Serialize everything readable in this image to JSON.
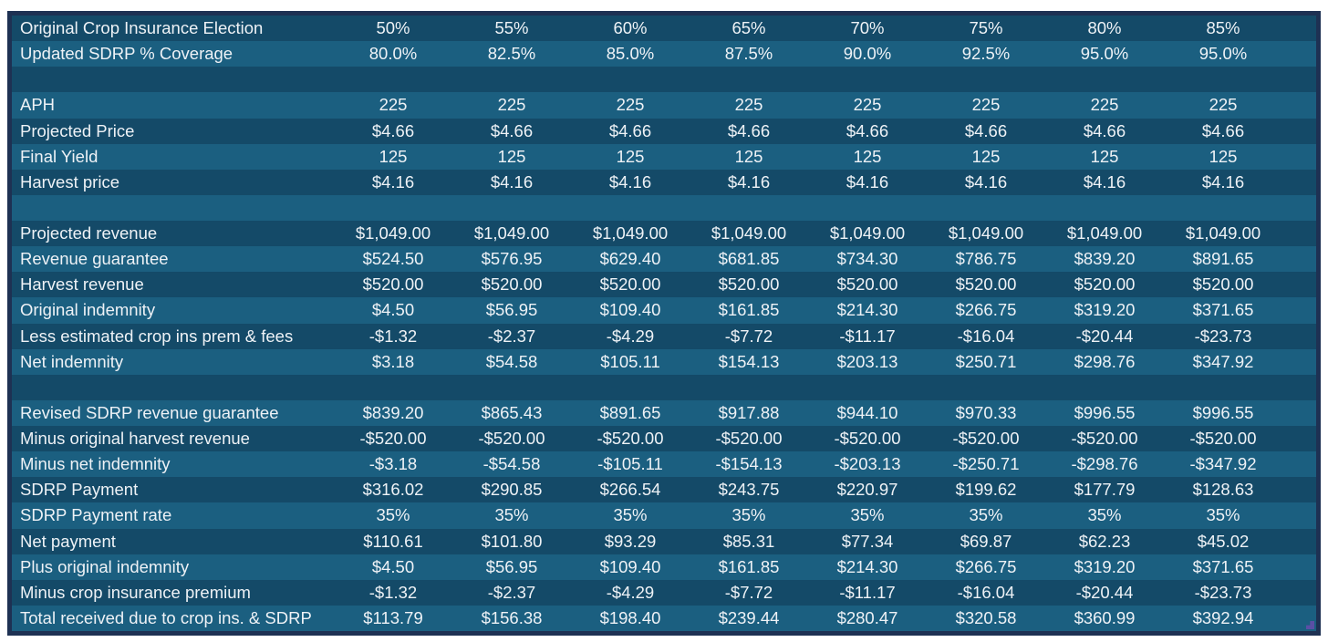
{
  "colors": {
    "page_bg": "#ffffff",
    "table_border": "#1e3153",
    "row_dark": "#144a68",
    "row_light": "#1b5f80",
    "text": "#eef2f6",
    "corner_marker": "#5a4fa5"
  },
  "table": {
    "rows": [
      {
        "label": "Original Crop Insurance Election",
        "values": [
          "50%",
          "55%",
          "60%",
          "65%",
          "70%",
          "75%",
          "80%",
          "85%"
        ]
      },
      {
        "label": "Updated SDRP % Coverage",
        "values": [
          "80.0%",
          "82.5%",
          "85.0%",
          "87.5%",
          "90.0%",
          "92.5%",
          "95.0%",
          "95.0%"
        ]
      },
      {
        "label": "",
        "values": [
          "",
          "",
          "",
          "",
          "",
          "",
          "",
          ""
        ]
      },
      {
        "label": "APH",
        "values": [
          "225",
          "225",
          "225",
          "225",
          "225",
          "225",
          "225",
          "225"
        ]
      },
      {
        "label": "Projected Price",
        "values": [
          "$4.66",
          "$4.66",
          "$4.66",
          "$4.66",
          "$4.66",
          "$4.66",
          "$4.66",
          "$4.66"
        ]
      },
      {
        "label": "Final Yield",
        "values": [
          "125",
          "125",
          "125",
          "125",
          "125",
          "125",
          "125",
          "125"
        ]
      },
      {
        "label": "Harvest price",
        "values": [
          "$4.16",
          "$4.16",
          "$4.16",
          "$4.16",
          "$4.16",
          "$4.16",
          "$4.16",
          "$4.16"
        ]
      },
      {
        "label": "",
        "values": [
          "",
          "",
          "",
          "",
          "",
          "",
          "",
          ""
        ]
      },
      {
        "label": "Projected revenue",
        "values": [
          "$1,049.00",
          "$1,049.00",
          "$1,049.00",
          "$1,049.00",
          "$1,049.00",
          "$1,049.00",
          "$1,049.00",
          "$1,049.00"
        ]
      },
      {
        "label": "Revenue guarantee",
        "values": [
          "$524.50",
          "$576.95",
          "$629.40",
          "$681.85",
          "$734.30",
          "$786.75",
          "$839.20",
          "$891.65"
        ]
      },
      {
        "label": "Harvest revenue",
        "values": [
          "$520.00",
          "$520.00",
          "$520.00",
          "$520.00",
          "$520.00",
          "$520.00",
          "$520.00",
          "$520.00"
        ]
      },
      {
        "label": "Original indemnity",
        "values": [
          "$4.50",
          "$56.95",
          "$109.40",
          "$161.85",
          "$214.30",
          "$266.75",
          "$319.20",
          "$371.65"
        ]
      },
      {
        "label": "Less estimated crop ins prem & fees",
        "values": [
          "-$1.32",
          "-$2.37",
          "-$4.29",
          "-$7.72",
          "-$11.17",
          "-$16.04",
          "-$20.44",
          "-$23.73"
        ]
      },
      {
        "label": "Net indemnity",
        "values": [
          "$3.18",
          "$54.58",
          "$105.11",
          "$154.13",
          "$203.13",
          "$250.71",
          "$298.76",
          "$347.92"
        ]
      },
      {
        "label": "",
        "values": [
          "",
          "",
          "",
          "",
          "",
          "",
          "",
          ""
        ]
      },
      {
        "label": "Revised SDRP revenue guarantee",
        "values": [
          "$839.20",
          "$865.43",
          "$891.65",
          "$917.88",
          "$944.10",
          "$970.33",
          "$996.55",
          "$996.55"
        ]
      },
      {
        "label": "Minus original harvest revenue",
        "values": [
          "-$520.00",
          "-$520.00",
          "-$520.00",
          "-$520.00",
          "-$520.00",
          "-$520.00",
          "-$520.00",
          "-$520.00"
        ]
      },
      {
        "label": "Minus net indemnity",
        "values": [
          "-$3.18",
          "-$54.58",
          "-$105.11",
          "-$154.13",
          "-$203.13",
          "-$250.71",
          "-$298.76",
          "-$347.92"
        ]
      },
      {
        "label": "SDRP Payment",
        "values": [
          "$316.02",
          "$290.85",
          "$266.54",
          "$243.75",
          "$220.97",
          "$199.62",
          "$177.79",
          "$128.63"
        ]
      },
      {
        "label": "SDRP Payment rate",
        "values": [
          "35%",
          "35%",
          "35%",
          "35%",
          "35%",
          "35%",
          "35%",
          "35%"
        ]
      },
      {
        "label": "Net payment",
        "values": [
          "$110.61",
          "$101.80",
          "$93.29",
          "$85.31",
          "$77.34",
          "$69.87",
          "$62.23",
          "$45.02"
        ]
      },
      {
        "label": "Plus original indemnity",
        "values": [
          "$4.50",
          "$56.95",
          "$109.40",
          "$161.85",
          "$214.30",
          "$266.75",
          "$319.20",
          "$371.65"
        ]
      },
      {
        "label": "Minus crop insurance premium",
        "values": [
          "-$1.32",
          "-$2.37",
          "-$4.29",
          "-$7.72",
          "-$11.17",
          "-$16.04",
          "-$20.44",
          "-$23.73"
        ]
      },
      {
        "label": "Total received due to crop ins. & SDRP",
        "values": [
          "$113.79",
          "$156.38",
          "$198.40",
          "$239.44",
          "$280.47",
          "$320.58",
          "$360.99",
          "$392.94"
        ]
      }
    ]
  }
}
